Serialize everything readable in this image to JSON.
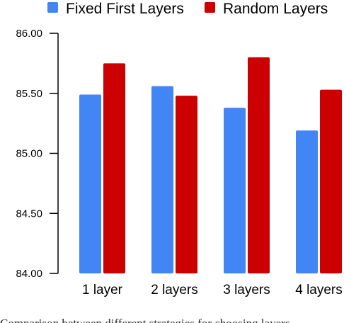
{
  "chart_data": {
    "type": "bar",
    "categories": [
      "1 layer",
      "2 layers",
      "3 layers",
      "4 layers"
    ],
    "series": [
      {
        "name": "Fixed First Layers",
        "color": "#4285f4",
        "values": [
          85.49,
          85.56,
          85.38,
          85.19
        ]
      },
      {
        "name": "Random Layers",
        "color": "#cc0000",
        "values": [
          85.75,
          85.48,
          85.8,
          85.53
        ]
      }
    ],
    "ylim": [
      84.0,
      86.0
    ],
    "yticks": [
      "84.00",
      "84.50",
      "85.00",
      "85.50",
      "86.00"
    ],
    "legend_position": "top",
    "grid": false
  },
  "caption": "Comparison between different strategies for choosing layers"
}
